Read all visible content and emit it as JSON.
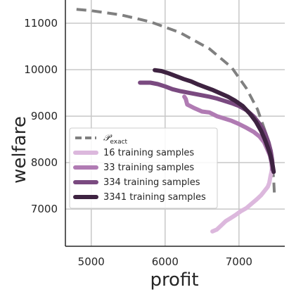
{
  "chart_data": {
    "type": "line",
    "xlabel": "profit",
    "ylabel": "welfare",
    "xlim": [
      4650,
      7620
    ],
    "ylim": [
      6200,
      11500
    ],
    "x_ticks": [
      5000,
      6000,
      7000
    ],
    "y_ticks": [
      7000,
      8000,
      9000,
      10000,
      11000
    ],
    "x_tick_labels": [
      "5000",
      "6000",
      "7000"
    ],
    "y_tick_labels": [
      "7000",
      "8000",
      "9000",
      "10000",
      "11000"
    ],
    "grid": true,
    "legend_position": "lower-left",
    "series": [
      {
        "name": "𝒫",
        "name_subscript": "exact",
        "style": "dashed",
        "color": "#808080",
        "x": [
          4800,
          5000,
          5400,
          5800,
          6200,
          6600,
          6900,
          7100,
          7250,
          7350,
          7420,
          7450,
          7470,
          7480
        ],
        "y": [
          11300,
          11270,
          11180,
          11030,
          10800,
          10450,
          10050,
          9600,
          9150,
          8700,
          8300,
          7950,
          7650,
          7300
        ]
      },
      {
        "name": "16 training samples",
        "style": "solid",
        "color": "#dcb8dd",
        "x": [
          6640,
          6700,
          6760,
          6820,
          6880,
          6950,
          7020,
          7100,
          7180,
          7240,
          7300,
          7350,
          7390,
          7410,
          7420,
          7430,
          7440,
          7450
        ],
        "y": [
          6520,
          6560,
          6650,
          6740,
          6800,
          6870,
          6950,
          7020,
          7130,
          7210,
          7300,
          7400,
          7480,
          7560,
          7650,
          7730,
          7800,
          7900
        ]
      },
      {
        "name": "33 training samples",
        "style": "solid",
        "color": "#b07bb3",
        "x": [
          6260,
          6280,
          6300,
          6400,
          6500,
          6600,
          6700,
          6800,
          6900,
          7000,
          7100,
          7200,
          7280,
          7340,
          7380,
          7420,
          7440,
          7450
        ],
        "y": [
          9420,
          9370,
          9250,
          9170,
          9100,
          9080,
          9000,
          8950,
          8900,
          8830,
          8750,
          8660,
          8560,
          8440,
          8300,
          8150,
          8000,
          7850
        ]
      },
      {
        "name": "334 training samples",
        "style": "solid",
        "color": "#7a4a80",
        "x": [
          5660,
          5800,
          5900,
          6000,
          6100,
          6200,
          6300,
          6400,
          6500,
          6600,
          6700,
          6800,
          6900,
          7000,
          7100,
          7200,
          7280,
          7350,
          7400,
          7430,
          7450,
          7460
        ],
        "y": [
          9720,
          9720,
          9690,
          9640,
          9580,
          9540,
          9510,
          9480,
          9450,
          9420,
          9380,
          9330,
          9280,
          9220,
          9130,
          8990,
          8830,
          8650,
          8430,
          8250,
          8050,
          7850
        ]
      },
      {
        "name": "3341 training samples",
        "style": "solid",
        "color": "#3e2341",
        "x": [
          5860,
          5950,
          6050,
          6150,
          6250,
          6350,
          6450,
          6550,
          6650,
          6750,
          6850,
          6950,
          7050,
          7150,
          7230,
          7300,
          7350,
          7390,
          7420,
          7440,
          7460,
          7470
        ],
        "y": [
          9990,
          9970,
          9920,
          9860,
          9800,
          9750,
          9680,
          9620,
          9560,
          9490,
          9420,
          9330,
          9220,
          9050,
          8880,
          8680,
          8500,
          8330,
          8190,
          8050,
          7900,
          7800
        ]
      }
    ]
  }
}
